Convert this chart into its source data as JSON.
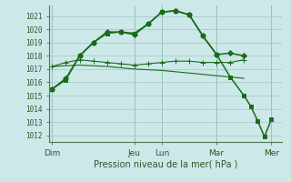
{
  "background_color": "#cce8e8",
  "grid_color": "#aacccc",
  "line_color": "#1a6b1a",
  "xlabel": "Pression niveau de la mer( hPa )",
  "ylim": [
    1011.5,
    1021.8
  ],
  "yticks": [
    1012,
    1013,
    1014,
    1015,
    1016,
    1017,
    1018,
    1019,
    1020,
    1021
  ],
  "xtick_labels": [
    "Dim",
    "Jeu",
    "Lun",
    "Mar",
    "Mer"
  ],
  "xtick_positions": [
    0,
    3,
    4,
    6,
    8
  ],
  "xlim": [
    -0.1,
    8.4
  ],
  "lines": [
    {
      "x": [
        0,
        0.5,
        1.0,
        1.5,
        2.0,
        2.5,
        3.0,
        3.5,
        4.0,
        4.5,
        5.0,
        5.5,
        6.0,
        6.5,
        7.0
      ],
      "y": [
        1015.5,
        1016.3,
        1018.0,
        1019.0,
        1019.8,
        1019.8,
        1019.6,
        1020.4,
        1021.3,
        1021.4,
        1021.1,
        1019.5,
        1018.1,
        1018.2,
        1018.0
      ],
      "marker": "D",
      "ms": 3,
      "lw": 1.1
    },
    {
      "x": [
        0,
        0.5,
        1.0,
        1.5,
        2.0,
        2.5,
        3.0,
        3.5,
        4.0,
        4.5,
        5.0,
        5.5,
        6.0,
        6.5,
        7.0
      ],
      "y": [
        1017.2,
        1017.5,
        1017.7,
        1017.6,
        1017.5,
        1017.4,
        1017.3,
        1017.4,
        1017.5,
        1017.6,
        1017.6,
        1017.5,
        1017.5,
        1017.5,
        1017.7
      ],
      "marker": "+",
      "ms": 4,
      "lw": 0.8
    },
    {
      "x": [
        0,
        1.0,
        2.0,
        3.0,
        4.0,
        5.0,
        6.0,
        7.0
      ],
      "y": [
        1017.2,
        1017.3,
        1017.2,
        1017.0,
        1016.9,
        1016.7,
        1016.5,
        1016.3
      ],
      "marker": "None",
      "ms": 0,
      "lw": 0.8
    },
    {
      "x": [
        0,
        0.5,
        1.0,
        1.5,
        2.0,
        2.5,
        3.0,
        3.5,
        4.0,
        4.5,
        5.0,
        5.5,
        6.0,
        6.5,
        7.0,
        7.25,
        7.5,
        7.75,
        8.0
      ],
      "y": [
        1015.5,
        1016.2,
        1018.0,
        1019.0,
        1019.7,
        1019.8,
        1019.7,
        1020.4,
        1021.3,
        1021.4,
        1021.1,
        1019.5,
        1018.1,
        1016.4,
        1015.0,
        1014.2,
        1013.1,
        1011.9,
        1013.2
      ],
      "marker": "s",
      "ms": 2.5,
      "lw": 1.1
    }
  ]
}
